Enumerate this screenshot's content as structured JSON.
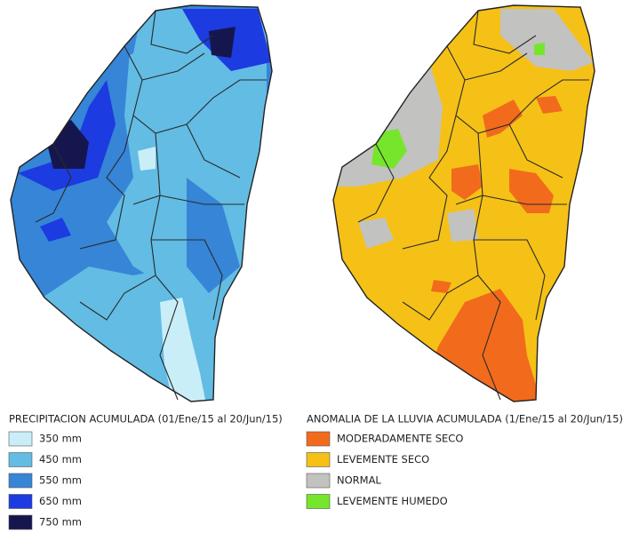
{
  "maps": [
    {
      "legend_title": "PRECIPITACION ACUMULADA (01/Ene/15 al 20/Jun/15)",
      "items": [
        {
          "label": "350 mm",
          "color": "#c9eef8"
        },
        {
          "label": "450 mm",
          "color": "#62bce4"
        },
        {
          "label": "550 mm",
          "color": "#3685d6"
        },
        {
          "label": "650 mm",
          "color": "#1c3be0"
        },
        {
          "label": "750 mm",
          "color": "#16164f"
        }
      ]
    },
    {
      "legend_title": "ANOMALIA DE LA LLUVIA ACUMULADA (1/Ene/15 al 20/Jun/15)",
      "items": [
        {
          "label": "MODERADAMENTE SECO",
          "color": "#f26b1c"
        },
        {
          "label": "LEVEMENTE SECO",
          "color": "#f5c116"
        },
        {
          "label": "NORMAL",
          "color": "#c2c2c0"
        },
        {
          "label": "LEVEMENTE HUMEDO",
          "color": "#76e62c"
        }
      ]
    }
  ]
}
